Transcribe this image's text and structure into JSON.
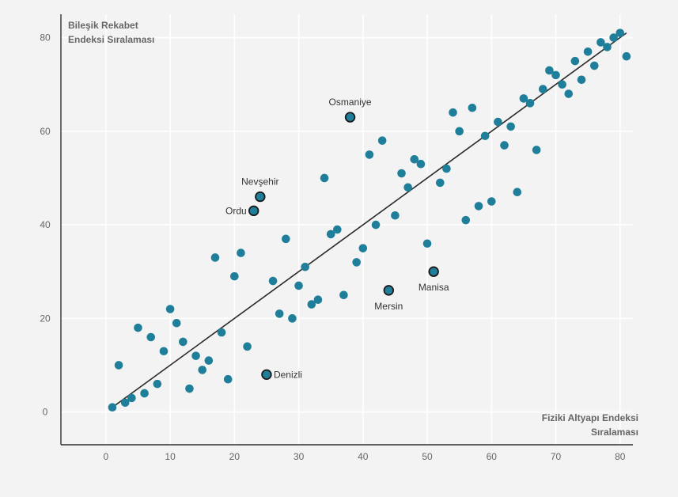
{
  "chart_data": {
    "type": "scatter",
    "title": "",
    "subtitle": "",
    "ylabel_lines": [
      "Bileşik Rekabet",
      "Endeksi Sıralaması"
    ],
    "xlabel_lines": [
      "Fiziki Altyapı Endeksi",
      "Sıralaması"
    ],
    "xlim": [
      -7,
      82
    ],
    "ylim": [
      -7,
      85
    ],
    "xticks": [
      0,
      10,
      20,
      30,
      40,
      50,
      60,
      70,
      80
    ],
    "yticks": [
      0,
      20,
      40,
      60,
      80
    ],
    "grid": true,
    "colors": {
      "point": "#1f7f9a",
      "highlight_fill": "#1f7f9a",
      "highlight_stroke": "#1a1a1a",
      "trendline": "#2a2a2a",
      "grid": "#ffffff",
      "axis": "#333333",
      "text": "#5a5a5a",
      "background": "#f3f3f3"
    },
    "trendline": {
      "x1": 1,
      "y1": 1,
      "x2": 81,
      "y2": 81
    },
    "points": [
      [
        1,
        1
      ],
      [
        2,
        10
      ],
      [
        3,
        2
      ],
      [
        4,
        3
      ],
      [
        5,
        18
      ],
      [
        6,
        4
      ],
      [
        7,
        16
      ],
      [
        8,
        6
      ],
      [
        9,
        13
      ],
      [
        10,
        22
      ],
      [
        11,
        19
      ],
      [
        12,
        15
      ],
      [
        13,
        5
      ],
      [
        14,
        12
      ],
      [
        15,
        9
      ],
      [
        16,
        11
      ],
      [
        17,
        33
      ],
      [
        18,
        17
      ],
      [
        19,
        7
      ],
      [
        20,
        29
      ],
      [
        21,
        34
      ],
      [
        22,
        14
      ],
      [
        26,
        28
      ],
      [
        27,
        21
      ],
      [
        28,
        37
      ],
      [
        29,
        20
      ],
      [
        30,
        27
      ],
      [
        31,
        31
      ],
      [
        32,
        23
      ],
      [
        33,
        24
      ],
      [
        34,
        50
      ],
      [
        35,
        38
      ],
      [
        36,
        39
      ],
      [
        37,
        25
      ],
      [
        39,
        32
      ],
      [
        40,
        35
      ],
      [
        41,
        55
      ],
      [
        42,
        40
      ],
      [
        43,
        58
      ],
      [
        45,
        42
      ],
      [
        46,
        51
      ],
      [
        47,
        48
      ],
      [
        48,
        54
      ],
      [
        49,
        53
      ],
      [
        50,
        36
      ],
      [
        52,
        49
      ],
      [
        53,
        52
      ],
      [
        54,
        64
      ],
      [
        55,
        60
      ],
      [
        56,
        41
      ],
      [
        57,
        65
      ],
      [
        58,
        44
      ],
      [
        59,
        59
      ],
      [
        60,
        45
      ],
      [
        61,
        62
      ],
      [
        62,
        57
      ],
      [
        63,
        61
      ],
      [
        64,
        47
      ],
      [
        65,
        67
      ],
      [
        66,
        66
      ],
      [
        67,
        56
      ],
      [
        68,
        69
      ],
      [
        69,
        73
      ],
      [
        70,
        72
      ],
      [
        71,
        70
      ],
      [
        72,
        68
      ],
      [
        73,
        75
      ],
      [
        74,
        71
      ],
      [
        75,
        77
      ],
      [
        76,
        74
      ],
      [
        77,
        79
      ],
      [
        78,
        78
      ],
      [
        79,
        80
      ],
      [
        80,
        81
      ],
      [
        81,
        76
      ]
    ],
    "highlighted": [
      {
        "name": "Osmaniye",
        "x": 38,
        "y": 63,
        "label_pos": "top"
      },
      {
        "name": "Nevşehir",
        "x": 24,
        "y": 46,
        "label_pos": "top"
      },
      {
        "name": "Ordu",
        "x": 23,
        "y": 43,
        "label_pos": "left"
      },
      {
        "name": "Manisa",
        "x": 51,
        "y": 30,
        "label_pos": "bottom"
      },
      {
        "name": "Mersin",
        "x": 44,
        "y": 26,
        "label_pos": "bottom"
      },
      {
        "name": "Denizli",
        "x": 25,
        "y": 8,
        "label_pos": "right"
      }
    ]
  }
}
